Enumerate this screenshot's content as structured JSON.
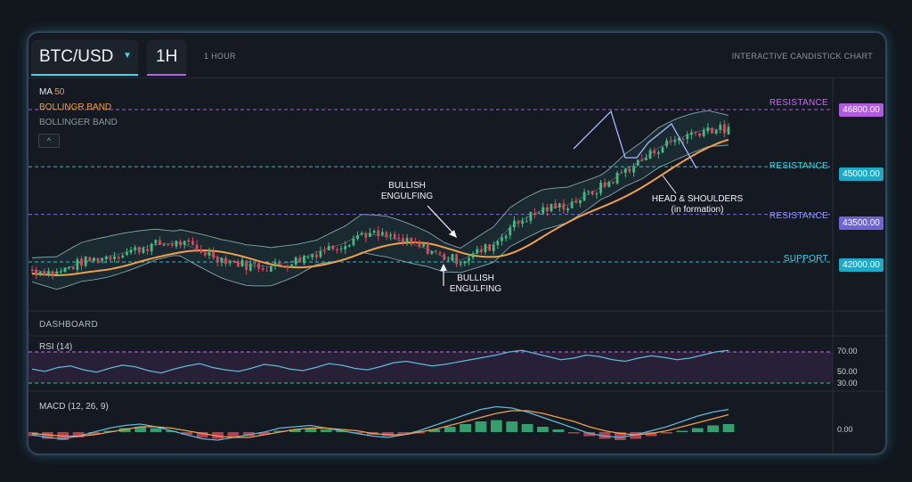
{
  "toolbar": {
    "symbol": "BTC/USD",
    "timeframe": "1H",
    "timeframe_text": "1 HOUR",
    "chart_title": "INTERACTIVE CANDISTICK CHART"
  },
  "indicators": {
    "ma": "MA",
    "ma_period": "50",
    "bollinger_1": "BOLLINGR BAND",
    "bollinger_2": "BOLLINGER BAND",
    "collapse": "^"
  },
  "dashboard_label": "DASHBOARD",
  "colors": {
    "up": "#3fbf7f",
    "down": "#e0475b",
    "ma": "#f0a04b",
    "cyan": "#38d8e6",
    "magenta": "#c86af0",
    "violet": "#8f7cf5"
  },
  "chart_data": [
    {
      "type": "candlestick",
      "title": "",
      "candle_count": 170,
      "levels": [
        {
          "label": "RESISTANCE",
          "price": "46800.00",
          "color": "magenta"
        },
        {
          "label": "RESISTANCE",
          "price": "45000.00",
          "color": "cyan"
        },
        {
          "label": "RESISTANCE",
          "price": "43500.00",
          "color": "violet"
        },
        {
          "label": "SUPPORT",
          "price": "42000.00",
          "color": "cyan"
        }
      ],
      "price_axis": [
        42000,
        43500,
        45000,
        46800
      ],
      "close_path": [
        [
          0,
          41750
        ],
        [
          6,
          41650
        ],
        [
          12,
          42000
        ],
        [
          18,
          42150
        ],
        [
          24,
          42350
        ],
        [
          30,
          42550
        ],
        [
          36,
          42600
        ],
        [
          40,
          42400
        ],
        [
          46,
          42100
        ],
        [
          52,
          41900
        ],
        [
          58,
          41850
        ],
        [
          64,
          42050
        ],
        [
          70,
          42350
        ],
        [
          76,
          42600
        ],
        [
          80,
          42900
        ],
        [
          86,
          42800
        ],
        [
          90,
          42650
        ],
        [
          96,
          42400
        ],
        [
          100,
          42150
        ],
        [
          104,
          42050
        ],
        [
          108,
          42300
        ],
        [
          112,
          42550
        ],
        [
          116,
          43100
        ],
        [
          120,
          43400
        ],
        [
          124,
          43650
        ],
        [
          130,
          43800
        ],
        [
          136,
          44200
        ],
        [
          140,
          44500
        ],
        [
          144,
          44900
        ],
        [
          148,
          45200
        ],
        [
          152,
          45600
        ],
        [
          156,
          45850
        ],
        [
          160,
          46050
        ],
        [
          164,
          46200
        ],
        [
          169,
          46150
        ]
      ],
      "moving_average": {
        "name": "MA 50"
      },
      "annotations": [
        {
          "text": "BULLISH ENGULFING"
        },
        {
          "text": "BULLISH ENGULFING"
        },
        {
          "text": "HEAD & SHOULDERS (in formation)"
        }
      ]
    },
    {
      "type": "line",
      "title": "RSI (14)",
      "levels": [
        70.0,
        50.0,
        30.0
      ],
      "series": [
        {
          "values": [
            48,
            45,
            50,
            52,
            47,
            44,
            49,
            53,
            51,
            46,
            43,
            48,
            52,
            55,
            50,
            47,
            45,
            49,
            54,
            52,
            48,
            46,
            50,
            55,
            53,
            49,
            47,
            51,
            56,
            58,
            55,
            52,
            54,
            57,
            60,
            63,
            66,
            70,
            72,
            68,
            64,
            60,
            62,
            66,
            64,
            60,
            58,
            62,
            65,
            63,
            60,
            62,
            66,
            70,
            72
          ]
        }
      ]
    },
    {
      "type": "bar",
      "title": "MACD (12, 26, 9)",
      "zero_label": "0.00",
      "histogram": [
        -0.3,
        -0.5,
        -0.6,
        -0.4,
        -0.2,
        0.1,
        0.3,
        0.4,
        0.3,
        0.1,
        -0.2,
        -0.4,
        -0.5,
        -0.4,
        -0.3,
        -0.2,
        0.1,
        0.2,
        0.3,
        0.2,
        0.1,
        -0.1,
        -0.2,
        -0.3,
        -0.2,
        -0.1,
        0.2,
        0.4,
        0.6,
        0.8,
        0.9,
        0.8,
        0.6,
        0.4,
        0.2,
        -0.1,
        -0.3,
        -0.5,
        -0.6,
        -0.5,
        -0.3,
        -0.1,
        0.1,
        0.3,
        0.5,
        0.6
      ],
      "series": [
        {
          "values": [
            -0.2,
            -0.4,
            -0.5,
            -0.3,
            0.0,
            0.3,
            0.5,
            0.6,
            0.4,
            0.1,
            -0.2,
            -0.5,
            -0.6,
            -0.4,
            -0.2,
            0.0,
            0.3,
            0.4,
            0.5,
            0.3,
            0.1,
            -0.1,
            -0.3,
            -0.4,
            -0.2,
            0.1,
            0.5,
            0.9,
            1.3,
            1.7,
            1.9,
            1.8,
            1.5,
            1.1,
            0.7,
            0.3,
            -0.1,
            -0.3,
            -0.4,
            -0.2,
            0.1,
            0.4,
            0.8,
            1.2,
            1.5,
            1.7
          ]
        },
        {
          "values": [
            -0.1,
            -0.2,
            -0.3,
            -0.3,
            -0.2,
            0.0,
            0.2,
            0.4,
            0.4,
            0.3,
            0.1,
            -0.1,
            -0.3,
            -0.4,
            -0.4,
            -0.2,
            0.0,
            0.2,
            0.3,
            0.3,
            0.2,
            0.1,
            -0.1,
            -0.2,
            -0.2,
            0.0,
            0.2,
            0.5,
            0.8,
            1.1,
            1.4,
            1.6,
            1.6,
            1.4,
            1.1,
            0.8,
            0.4,
            0.1,
            -0.1,
            -0.2,
            -0.1,
            0.1,
            0.4,
            0.7,
            1.0,
            1.3
          ]
        }
      ]
    }
  ]
}
